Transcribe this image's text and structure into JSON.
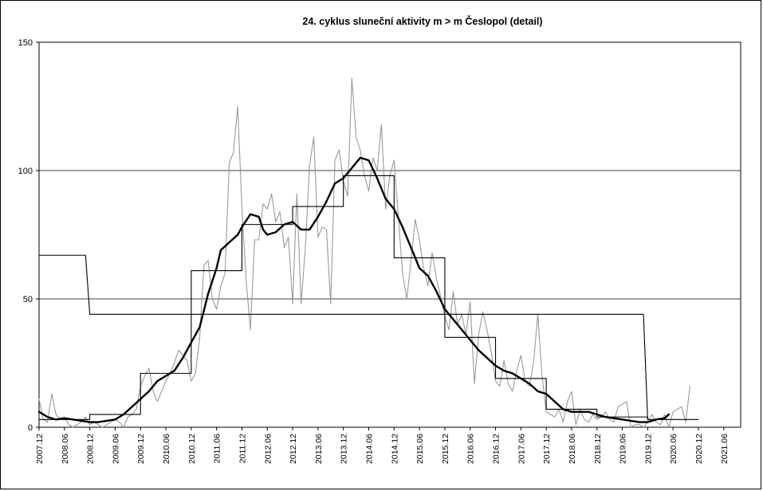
{
  "chart_data": {
    "type": "line",
    "title": "24. cyklus sluneční aktivity  m > m Česlopol (detail)",
    "xlabel": "",
    "ylabel": "",
    "ylim": [
      0,
      150
    ],
    "y_ticks": [
      0,
      50,
      100,
      150
    ],
    "x_ticks": [
      "2007.12",
      "2008.06",
      "2008.12",
      "2009.06",
      "2009.12",
      "2010.06",
      "2010.12",
      "2011.06",
      "2011.12",
      "2012.06",
      "2012.12",
      "2013.06",
      "2013.12",
      "2014.06",
      "2014.12",
      "2015.06",
      "2015.12",
      "2016.06",
      "2016.12",
      "2017.06",
      "2017.12",
      "2018.06",
      "2018.12",
      "2019.06",
      "2019.12",
      "2020.06",
      "2020.12",
      "2021.06"
    ],
    "x_range": [
      "2007.12",
      "2021.10"
    ],
    "grid": "horizontal",
    "legend": "none",
    "colors": {
      "monthly": "#999999",
      "smoothed": "#000000",
      "yearly": "#000000"
    },
    "series": [
      {
        "style": "monthly, thin grey",
        "points": [
          [
            "2007.12",
            11
          ],
          [
            "2008.01",
            3
          ],
          [
            "2008.02",
            2
          ],
          [
            "2008.03",
            13
          ],
          [
            "2008.04",
            5
          ],
          [
            "2008.05",
            3
          ],
          [
            "2008.06",
            4
          ],
          [
            "2008.07",
            1
          ],
          [
            "2008.08",
            0
          ],
          [
            "2008.09",
            1
          ],
          [
            "2008.10",
            2
          ],
          [
            "2008.11",
            4
          ],
          [
            "2008.12",
            1
          ],
          [
            "2009.01",
            2
          ],
          [
            "2009.02",
            1
          ],
          [
            "2009.03",
            0
          ],
          [
            "2009.04",
            1
          ],
          [
            "2009.05",
            2
          ],
          [
            "2009.06",
            3
          ],
          [
            "2009.07",
            2
          ],
          [
            "2009.08",
            0
          ],
          [
            "2009.09",
            4
          ],
          [
            "2009.10",
            5
          ],
          [
            "2009.11",
            7
          ],
          [
            "2009.12",
            16
          ],
          [
            "2010.01",
            20
          ],
          [
            "2010.02",
            23
          ],
          [
            "2010.03",
            14
          ],
          [
            "2010.04",
            10
          ],
          [
            "2010.05",
            14
          ],
          [
            "2010.06",
            18
          ],
          [
            "2010.07",
            21
          ],
          [
            "2010.08",
            25
          ],
          [
            "2010.09",
            30
          ],
          [
            "2010.10",
            28
          ],
          [
            "2010.11",
            26
          ],
          [
            "2010.12",
            18
          ],
          [
            "2011.01",
            21
          ],
          [
            "2011.02",
            35
          ],
          [
            "2011.03",
            63
          ],
          [
            "2011.04",
            65
          ],
          [
            "2011.05",
            50
          ],
          [
            "2011.06",
            46
          ],
          [
            "2011.07",
            55
          ],
          [
            "2011.08",
            60
          ],
          [
            "2011.09",
            103
          ],
          [
            "2011.10",
            107
          ],
          [
            "2011.11",
            125
          ],
          [
            "2011.12",
            85
          ],
          [
            "2012.01",
            57
          ],
          [
            "2012.02",
            38
          ],
          [
            "2012.03",
            73
          ],
          [
            "2012.04",
            73
          ],
          [
            "2012.05",
            87
          ],
          [
            "2012.06",
            85
          ],
          [
            "2012.07",
            91
          ],
          [
            "2012.08",
            80
          ],
          [
            "2012.09",
            84
          ],
          [
            "2012.10",
            70
          ],
          [
            "2012.11",
            74
          ],
          [
            "2012.12",
            48
          ],
          [
            "2013.01",
            91
          ],
          [
            "2013.02",
            48
          ],
          [
            "2013.03",
            70
          ],
          [
            "2013.04",
            102
          ],
          [
            "2013.05",
            113
          ],
          [
            "2013.06",
            74
          ],
          [
            "2013.07",
            78
          ],
          [
            "2013.08",
            77
          ],
          [
            "2013.09",
            48
          ],
          [
            "2013.10",
            104
          ],
          [
            "2013.11",
            108
          ],
          [
            "2013.12",
            96
          ],
          [
            "2014.01",
            90
          ],
          [
            "2014.02",
            136
          ],
          [
            "2014.03",
            113
          ],
          [
            "2014.04",
            108
          ],
          [
            "2014.05",
            98
          ],
          [
            "2014.06",
            92
          ],
          [
            "2014.07",
            105
          ],
          [
            "2014.08",
            100
          ],
          [
            "2014.09",
            118
          ],
          [
            "2014.10",
            85
          ],
          [
            "2014.11",
            98
          ],
          [
            "2014.12",
            104
          ],
          [
            "2015.01",
            82
          ],
          [
            "2015.02",
            60
          ],
          [
            "2015.03",
            50
          ],
          [
            "2015.04",
            65
          ],
          [
            "2015.05",
            81
          ],
          [
            "2015.06",
            73
          ],
          [
            "2015.07",
            62
          ],
          [
            "2015.08",
            55
          ],
          [
            "2015.09",
            68
          ],
          [
            "2015.10",
            58
          ],
          [
            "2015.11",
            51
          ],
          [
            "2015.12",
            43
          ],
          [
            "2016.01",
            38
          ],
          [
            "2016.02",
            53
          ],
          [
            "2016.03",
            40
          ],
          [
            "2016.04",
            44
          ],
          [
            "2016.05",
            36
          ],
          [
            "2016.06",
            49
          ],
          [
            "2016.07",
            17
          ],
          [
            "2016.08",
            36
          ],
          [
            "2016.09",
            45
          ],
          [
            "2016.10",
            38
          ],
          [
            "2016.11",
            29
          ],
          [
            "2016.12",
            18
          ],
          [
            "2017.01",
            16
          ],
          [
            "2017.02",
            26
          ],
          [
            "2017.03",
            17
          ],
          [
            "2017.04",
            14
          ],
          [
            "2017.05",
            22
          ],
          [
            "2017.06",
            28
          ],
          [
            "2017.07",
            18
          ],
          [
            "2017.08",
            16
          ],
          [
            "2017.09",
            25
          ],
          [
            "2017.10",
            44
          ],
          [
            "2017.11",
            20
          ],
          [
            "2017.12",
            6
          ],
          [
            "2018.01",
            5
          ],
          [
            "2018.02",
            4
          ],
          [
            "2018.03",
            7
          ],
          [
            "2018.04",
            2
          ],
          [
            "2018.05",
            10
          ],
          [
            "2018.06",
            14
          ],
          [
            "2018.07",
            1
          ],
          [
            "2018.08",
            7
          ],
          [
            "2018.09",
            3
          ],
          [
            "2018.10",
            2
          ],
          [
            "2018.11",
            5
          ],
          [
            "2018.12",
            3
          ],
          [
            "2019.01",
            4
          ],
          [
            "2019.02",
            6
          ],
          [
            "2019.03",
            3
          ],
          [
            "2019.04",
            2
          ],
          [
            "2019.05",
            8
          ],
          [
            "2019.06",
            9
          ],
          [
            "2019.07",
            10
          ],
          [
            "2019.08",
            0
          ],
          [
            "2019.09",
            1
          ],
          [
            "2019.10",
            1
          ],
          [
            "2019.11",
            0
          ],
          [
            "2019.12",
            2
          ],
          [
            "2020.01",
            5
          ],
          [
            "2020.02",
            2
          ],
          [
            "2020.03",
            1
          ],
          [
            "2020.04",
            5
          ],
          [
            "2020.05",
            0
          ],
          [
            "2020.06",
            6
          ],
          [
            "2020.07",
            7
          ],
          [
            "2020.08",
            8
          ],
          [
            "2020.09",
            2
          ],
          [
            "2020.10",
            16
          ]
        ]
      },
      {
        "style": "smoothed, thick black",
        "points": [
          [
            "2007.12",
            6
          ],
          [
            "2008.02",
            4
          ],
          [
            "2008.04",
            3
          ],
          [
            "2008.06",
            3.5
          ],
          [
            "2008.08",
            3
          ],
          [
            "2008.10",
            2.5
          ],
          [
            "2008.12",
            2
          ],
          [
            "2009.02",
            2
          ],
          [
            "2009.04",
            2.5
          ],
          [
            "2009.06",
            3
          ],
          [
            "2009.08",
            5
          ],
          [
            "2009.10",
            8
          ],
          [
            "2009.12",
            11
          ],
          [
            "2010.02",
            14
          ],
          [
            "2010.04",
            18
          ],
          [
            "2010.06",
            20
          ],
          [
            "2010.08",
            22
          ],
          [
            "2010.10",
            27
          ],
          [
            "2010.12",
            33
          ],
          [
            "2011.02",
            39
          ],
          [
            "2011.04",
            52
          ],
          [
            "2011.06",
            62
          ],
          [
            "2011.07",
            69
          ],
          [
            "2011.09",
            72
          ],
          [
            "2011.11",
            75
          ],
          [
            "2011.12",
            78
          ],
          [
            "2012.02",
            83
          ],
          [
            "2012.04",
            82
          ],
          [
            "2012.05",
            77
          ],
          [
            "2012.06",
            75
          ],
          [
            "2012.08",
            76
          ],
          [
            "2012.10",
            79
          ],
          [
            "2012.12",
            80
          ],
          [
            "2013.02",
            77
          ],
          [
            "2013.04",
            77
          ],
          [
            "2013.06",
            82
          ],
          [
            "2013.08",
            88
          ],
          [
            "2013.10",
            95
          ],
          [
            "2013.12",
            97
          ],
          [
            "2014.02",
            101
          ],
          [
            "2014.04",
            105
          ],
          [
            "2014.06",
            104
          ],
          [
            "2014.08",
            97
          ],
          [
            "2014.10",
            89
          ],
          [
            "2014.12",
            85
          ],
          [
            "2015.02",
            78
          ],
          [
            "2015.04",
            70
          ],
          [
            "2015.06",
            62
          ],
          [
            "2015.08",
            59
          ],
          [
            "2015.10",
            53
          ],
          [
            "2015.12",
            46
          ],
          [
            "2016.02",
            42
          ],
          [
            "2016.04",
            38
          ],
          [
            "2016.06",
            34
          ],
          [
            "2016.08",
            30
          ],
          [
            "2016.10",
            27
          ],
          [
            "2016.12",
            24
          ],
          [
            "2017.02",
            22
          ],
          [
            "2017.04",
            21
          ],
          [
            "2017.06",
            19
          ],
          [
            "2017.08",
            17
          ],
          [
            "2017.10",
            14
          ],
          [
            "2017.12",
            13
          ],
          [
            "2018.02",
            10
          ],
          [
            "2018.04",
            7
          ],
          [
            "2018.06",
            6
          ],
          [
            "2018.08",
            6
          ],
          [
            "2018.10",
            6
          ],
          [
            "2018.12",
            5
          ],
          [
            "2019.02",
            4
          ],
          [
            "2019.04",
            3.5
          ],
          [
            "2019.06",
            3
          ],
          [
            "2019.08",
            2.5
          ],
          [
            "2019.10",
            2
          ],
          [
            "2019.12",
            2
          ],
          [
            "2020.02",
            3
          ],
          [
            "2020.04",
            3.5
          ],
          [
            "2020.05",
            5
          ]
        ]
      },
      {
        "style": "yearly mean steps, thin black",
        "points": [
          [
            "2007.12",
            3
          ],
          [
            "2008.12",
            3
          ],
          [
            "2008.12",
            5
          ],
          [
            "2009.12",
            5
          ],
          [
            "2009.12",
            21
          ],
          [
            "2010.12",
            21
          ],
          [
            "2010.12",
            61
          ],
          [
            "2011.12",
            61
          ],
          [
            "2011.12",
            79
          ],
          [
            "2012.12",
            79
          ],
          [
            "2012.12",
            86
          ],
          [
            "2013.12",
            86
          ],
          [
            "2013.12",
            98
          ],
          [
            "2014.12",
            98
          ],
          [
            "2014.12",
            66
          ],
          [
            "2015.12",
            66
          ],
          [
            "2015.12",
            35
          ],
          [
            "2016.12",
            35
          ],
          [
            "2016.12",
            19
          ],
          [
            "2017.12",
            19
          ],
          [
            "2017.12",
            7
          ],
          [
            "2018.12",
            7
          ],
          [
            "2018.12",
            4
          ],
          [
            "2019.12",
            4
          ],
          [
            "2019.12",
            3
          ],
          [
            "2020.12",
            3
          ]
        ]
      },
      {
        "style": "long-period mean, thin black",
        "points": [
          [
            "2007.12",
            67
          ],
          [
            "2008.11",
            67
          ],
          [
            "2008.12",
            44
          ],
          [
            "2019.11",
            44
          ],
          [
            "2019.12",
            3
          ]
        ]
      }
    ]
  }
}
